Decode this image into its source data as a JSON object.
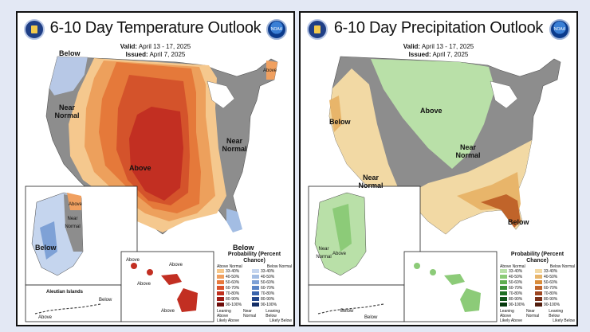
{
  "temperature": {
    "title": "6-10 Day Temperature Outlook",
    "valid_label": "Valid:",
    "valid": "April 13 - 17, 2025",
    "issued_label": "Issued:",
    "issued": "April 7, 2025",
    "noaa_logo": "NOAA",
    "labels": {
      "below_nw": "Below",
      "near_normal_w": "Near Normal",
      "above_center": "Above",
      "near_normal_e": "Near Normal",
      "above_ne": "Above",
      "below_se": "Below",
      "ak_above": "Above",
      "ak_near_normal": "Near Normal",
      "ak_below": "Below",
      "aleutian": "Aleutian Islands",
      "aleutian_below": "Below",
      "aleutian_above": "Above",
      "hi_above_1": "Above",
      "hi_above_2": "Above",
      "hi_above_3": "Above",
      "hi_above_4": "Above"
    },
    "legend": {
      "title": "Probability (Percent Chance)",
      "above_header": "Above Normal",
      "below_header": "Below Normal",
      "leaning_above": "Leaning Above",
      "likely_above": "Likely Above",
      "near_normal": "Near Normal",
      "leaning_below": "Leaning Below",
      "likely_below": "Likely Below",
      "ranges": [
        "33-40%",
        "40-50%",
        "50-60%",
        "60-70%",
        "70-80%",
        "80-90%",
        "90-100%"
      ],
      "above_colors": [
        "#f6c78a",
        "#f0a060",
        "#e8783c",
        "#d9512a",
        "#c0301e",
        "#9c1a14",
        "#6e0d0a"
      ],
      "below_colors": [
        "#c5d5ee",
        "#a3bde3",
        "#7ea1d6",
        "#5a84c6",
        "#3a64ac",
        "#24478c",
        "#142e66"
      ],
      "near_color": "#8c8c8c"
    }
  },
  "precipitation": {
    "title": "6-10 Day Precipitation Outlook",
    "valid_label": "Valid:",
    "valid": "April 13 - 17, 2025",
    "issued_label": "Issued:",
    "issued": "April 7, 2025",
    "noaa_logo": "NOAA",
    "labels": {
      "above_center": "Above",
      "below_w": "Below",
      "near_normal_w": "Near Normal",
      "near_normal_e": "Near Normal",
      "below_se": "Below",
      "ak_near_normal": "Near Normal",
      "ak_above": "Above",
      "aleutian_below_1": "Below",
      "aleutian_below_2": "Below"
    },
    "legend": {
      "title": "Probability (Percent Chance)",
      "above_header": "Above Normal",
      "below_header": "Below Normal",
      "leaning_above": "Leaning Above",
      "likely_above": "Likely Above",
      "near_normal": "Near Normal",
      "leaning_below": "Leaning Below",
      "likely_below": "Likely Below",
      "ranges": [
        "33-40%",
        "40-50%",
        "50-60%",
        "60-70%",
        "70-80%",
        "80-90%",
        "90-100%"
      ],
      "above_colors": [
        "#b9e0a8",
        "#8ccb78",
        "#5fae50",
        "#3a8f36",
        "#1f7024",
        "#0f5418",
        "#063a0e"
      ],
      "below_colors": [
        "#f2d9a4",
        "#e8b56a",
        "#d98c3a",
        "#c0642a",
        "#9c4520",
        "#7a3018",
        "#521e0e"
      ],
      "near_color": "#8c8c8c"
    }
  }
}
